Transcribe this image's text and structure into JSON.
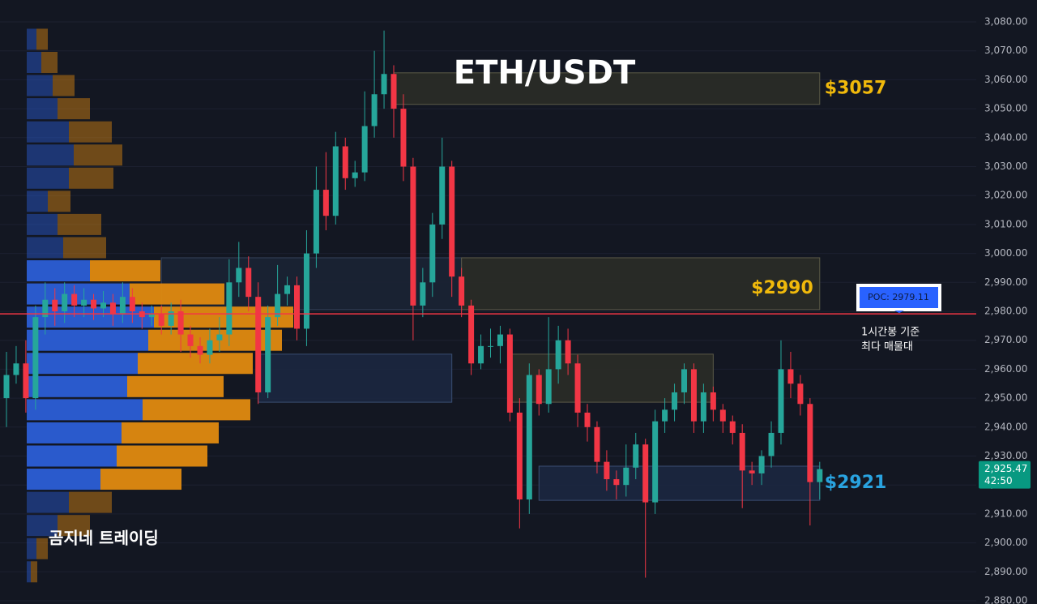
{
  "chart_data": {
    "type": "candlestick",
    "title": "ETH/USDT",
    "watermark": "곰지네 트레이딩",
    "ylim": [
      2880,
      3080
    ],
    "yticks": [
      {
        "value": 2880,
        "label": "2,880.00"
      },
      {
        "value": 2890,
        "label": "2,890.00"
      },
      {
        "value": 2900,
        "label": "2,900.00"
      },
      {
        "value": 2910,
        "label": "2,910.00"
      },
      {
        "value": 2920,
        "label": "2,920.00"
      },
      {
        "value": 2930,
        "label": "2,930.00"
      },
      {
        "value": 2940,
        "label": "2,940.00"
      },
      {
        "value": 2950,
        "label": "2,950.00"
      },
      {
        "value": 2960,
        "label": "2,960.00"
      },
      {
        "value": 2970,
        "label": "2,970.00"
      },
      {
        "value": 2980,
        "label": "2,980.00"
      },
      {
        "value": 2990,
        "label": "2,990.00"
      },
      {
        "value": 3000,
        "label": "3,000.00"
      },
      {
        "value": 3010,
        "label": "3,010.00"
      },
      {
        "value": 3020,
        "label": "3,020.00"
      },
      {
        "value": 3030,
        "label": "3,030.00"
      },
      {
        "value": 3040,
        "label": "3,040.00"
      },
      {
        "value": 3050,
        "label": "3,050.00"
      },
      {
        "value": 3060,
        "label": "3,060.00"
      },
      {
        "value": 3070,
        "label": "3,070.00"
      },
      {
        "value": 3080,
        "label": "3,080.00"
      }
    ],
    "grid": true,
    "up_color": "#26a69a",
    "down_color": "#f23645",
    "open": [
      2950,
      2958,
      2962,
      2950,
      2978,
      2984,
      2980,
      2986,
      2982,
      2984,
      2981,
      2983,
      2979,
      2985,
      2980,
      2978,
      2979,
      2975,
      2980,
      2972,
      2968,
      2965,
      2970,
      2972,
      2990,
      2995,
      2985,
      2952,
      2978,
      2986,
      2989,
      2974,
      3000,
      3022,
      3013,
      3037,
      3026,
      3028,
      3044,
      3055,
      3062,
      3050,
      3030,
      2982,
      2990,
      3010,
      3030,
      2992,
      2982,
      2962,
      2968,
      2968,
      2972,
      2945,
      2915,
      2958,
      2948,
      2960,
      2970,
      2962,
      2945,
      2940,
      2928,
      2922,
      2920,
      2926,
      2934,
      2914,
      2942,
      2946,
      2952,
      2960,
      2942,
      2952,
      2946,
      2942,
      2938,
      2925,
      2924,
      2930,
      2938,
      2960,
      2955,
      2948,
      2921
    ],
    "high": [
      2966,
      2968,
      2970,
      2982,
      2990,
      2988,
      2990,
      2989,
      2988,
      2986,
      2987,
      2986,
      2990,
      2988,
      2983,
      2982,
      2982,
      2983,
      2984,
      2975,
      2971,
      2974,
      2978,
      2998,
      3004,
      2999,
      2990,
      2982,
      2996,
      2992,
      2992,
      3008,
      3030,
      3035,
      3042,
      3040,
      3032,
      3056,
      3070,
      3077,
      3065,
      3055,
      3033,
      2995,
      3014,
      3040,
      3032,
      2995,
      2984,
      2972,
      2974,
      2975,
      2974,
      2950,
      2962,
      2960,
      2978,
      2975,
      2974,
      2965,
      2948,
      2942,
      2932,
      2925,
      2934,
      2938,
      2936,
      2946,
      2950,
      2955,
      2962,
      2962,
      2955,
      2954,
      2948,
      2944,
      2941,
      2928,
      2932,
      2942,
      2970,
      2966,
      2958,
      2950,
      2928
    ],
    "low": [
      2940,
      2955,
      2945,
      2946,
      2972,
      2975,
      2976,
      2978,
      2978,
      2977,
      2978,
      2975,
      2976,
      2976,
      2974,
      2975,
      2972,
      2972,
      2966,
      2964,
      2962,
      2962,
      2966,
      2968,
      2985,
      2980,
      2948,
      2950,
      2975,
      2982,
      2970,
      2968,
      2995,
      3008,
      3010,
      3022,
      3023,
      3025,
      3040,
      3050,
      3040,
      3025,
      2970,
      2978,
      2985,
      3005,
      2985,
      2978,
      2958,
      2960,
      2964,
      2962,
      2942,
      2905,
      2910,
      2944,
      2945,
      2955,
      2958,
      2940,
      2935,
      2924,
      2918,
      2915,
      2916,
      2922,
      2888,
      2910,
      2938,
      2942,
      2948,
      2938,
      2938,
      2942,
      2938,
      2934,
      2912,
      2920,
      2920,
      2926,
      2934,
      2950,
      2944,
      2906,
      2915
    ],
    "close": [
      2958,
      2962,
      2950,
      2978,
      2984,
      2980,
      2986,
      2982,
      2984,
      2981,
      2983,
      2979,
      2985,
      2980,
      2978,
      2979,
      2975,
      2980,
      2972,
      2968,
      2965,
      2970,
      2972,
      2990,
      2995,
      2985,
      2952,
      2978,
      2986,
      2989,
      2974,
      3000,
      3022,
      3013,
      3037,
      3026,
      3028,
      3044,
      3055,
      3062,
      3050,
      3030,
      2982,
      2990,
      3010,
      3030,
      2992,
      2982,
      2962,
      2968,
      2968,
      2972,
      2945,
      2915,
      2958,
      2948,
      2960,
      2970,
      2962,
      2945,
      2940,
      2928,
      2922,
      2920,
      2926,
      2934,
      2914,
      2942,
      2946,
      2952,
      2960,
      2942,
      2952,
      2946,
      2942,
      2938,
      2925,
      2924,
      2930,
      2938,
      2960,
      2955,
      2948,
      2921,
      2925.47
    ],
    "volume_profile": {
      "levels": [
        3074,
        3066,
        3058,
        3050,
        3042,
        3034,
        3026,
        3018,
        3010,
        3002,
        2994,
        2986,
        2978,
        2970,
        2962,
        2954,
        2946,
        2938,
        2930,
        2922,
        2914,
        2906,
        2898,
        2890
      ],
      "series": [
        {
          "name": "buy",
          "color": "#2b5ed6",
          "values": [
            12,
            18,
            32,
            38,
            52,
            58,
            52,
            26,
            38,
            45,
            78,
            127,
            157,
            150,
            137,
            124,
            143,
            117,
            111,
            91,
            52,
            38,
            12,
            5
          ]
        },
        {
          "name": "sell",
          "color": "#e08a10",
          "values": [
            14,
            20,
            27,
            40,
            53,
            60,
            55,
            28,
            54,
            53,
            87,
            117,
            172,
            165,
            142,
            119,
            133,
            120,
            112,
            100,
            53,
            40,
            14,
            8
          ]
        }
      ],
      "value_area_rows": [
        10,
        19
      ]
    },
    "zones": [
      {
        "top": 3062.4,
        "bottom": 3051.5,
        "start": 40,
        "end": 84,
        "color": "#2b2c27",
        "border": "#5c5a48",
        "label": "$3057",
        "label_color": "#f0b90b"
      },
      {
        "top": 2998.5,
        "bottom": 2980.6,
        "start": 16,
        "end": 47,
        "color": "#1b2434",
        "border": "#34415a"
      },
      {
        "top": 2998.5,
        "bottom": 2980.6,
        "start": 47,
        "end": 84,
        "color": "#2b2c27",
        "border": "#5c5a48",
        "label": "$2990",
        "label_color": "#f0b90b",
        "label_inside": true
      },
      {
        "top": 2965.2,
        "bottom": 2948.6,
        "start": 26,
        "end": 46,
        "color": "#1c2740",
        "border": "#3a4e72"
      },
      {
        "top": 2965.2,
        "bottom": 2948.6,
        "start": 52,
        "end": 73,
        "color": "#2b2c27",
        "border": "#5c5a48"
      },
      {
        "top": 2926.5,
        "bottom": 2914.7,
        "start": 55,
        "end": 84,
        "color": "#1c2740",
        "border": "#3a4e72",
        "label": "$2921",
        "label_color": "#29a3e0"
      }
    ],
    "poc": {
      "value": 2979.11,
      "label": "POC: 2979.11",
      "color": "#f23645",
      "note": [
        "1시간봉 기준",
        "최다 매물대"
      ]
    },
    "last_price": {
      "value": 2925.47,
      "label": "2,925.47",
      "countdown": "42:50"
    }
  }
}
